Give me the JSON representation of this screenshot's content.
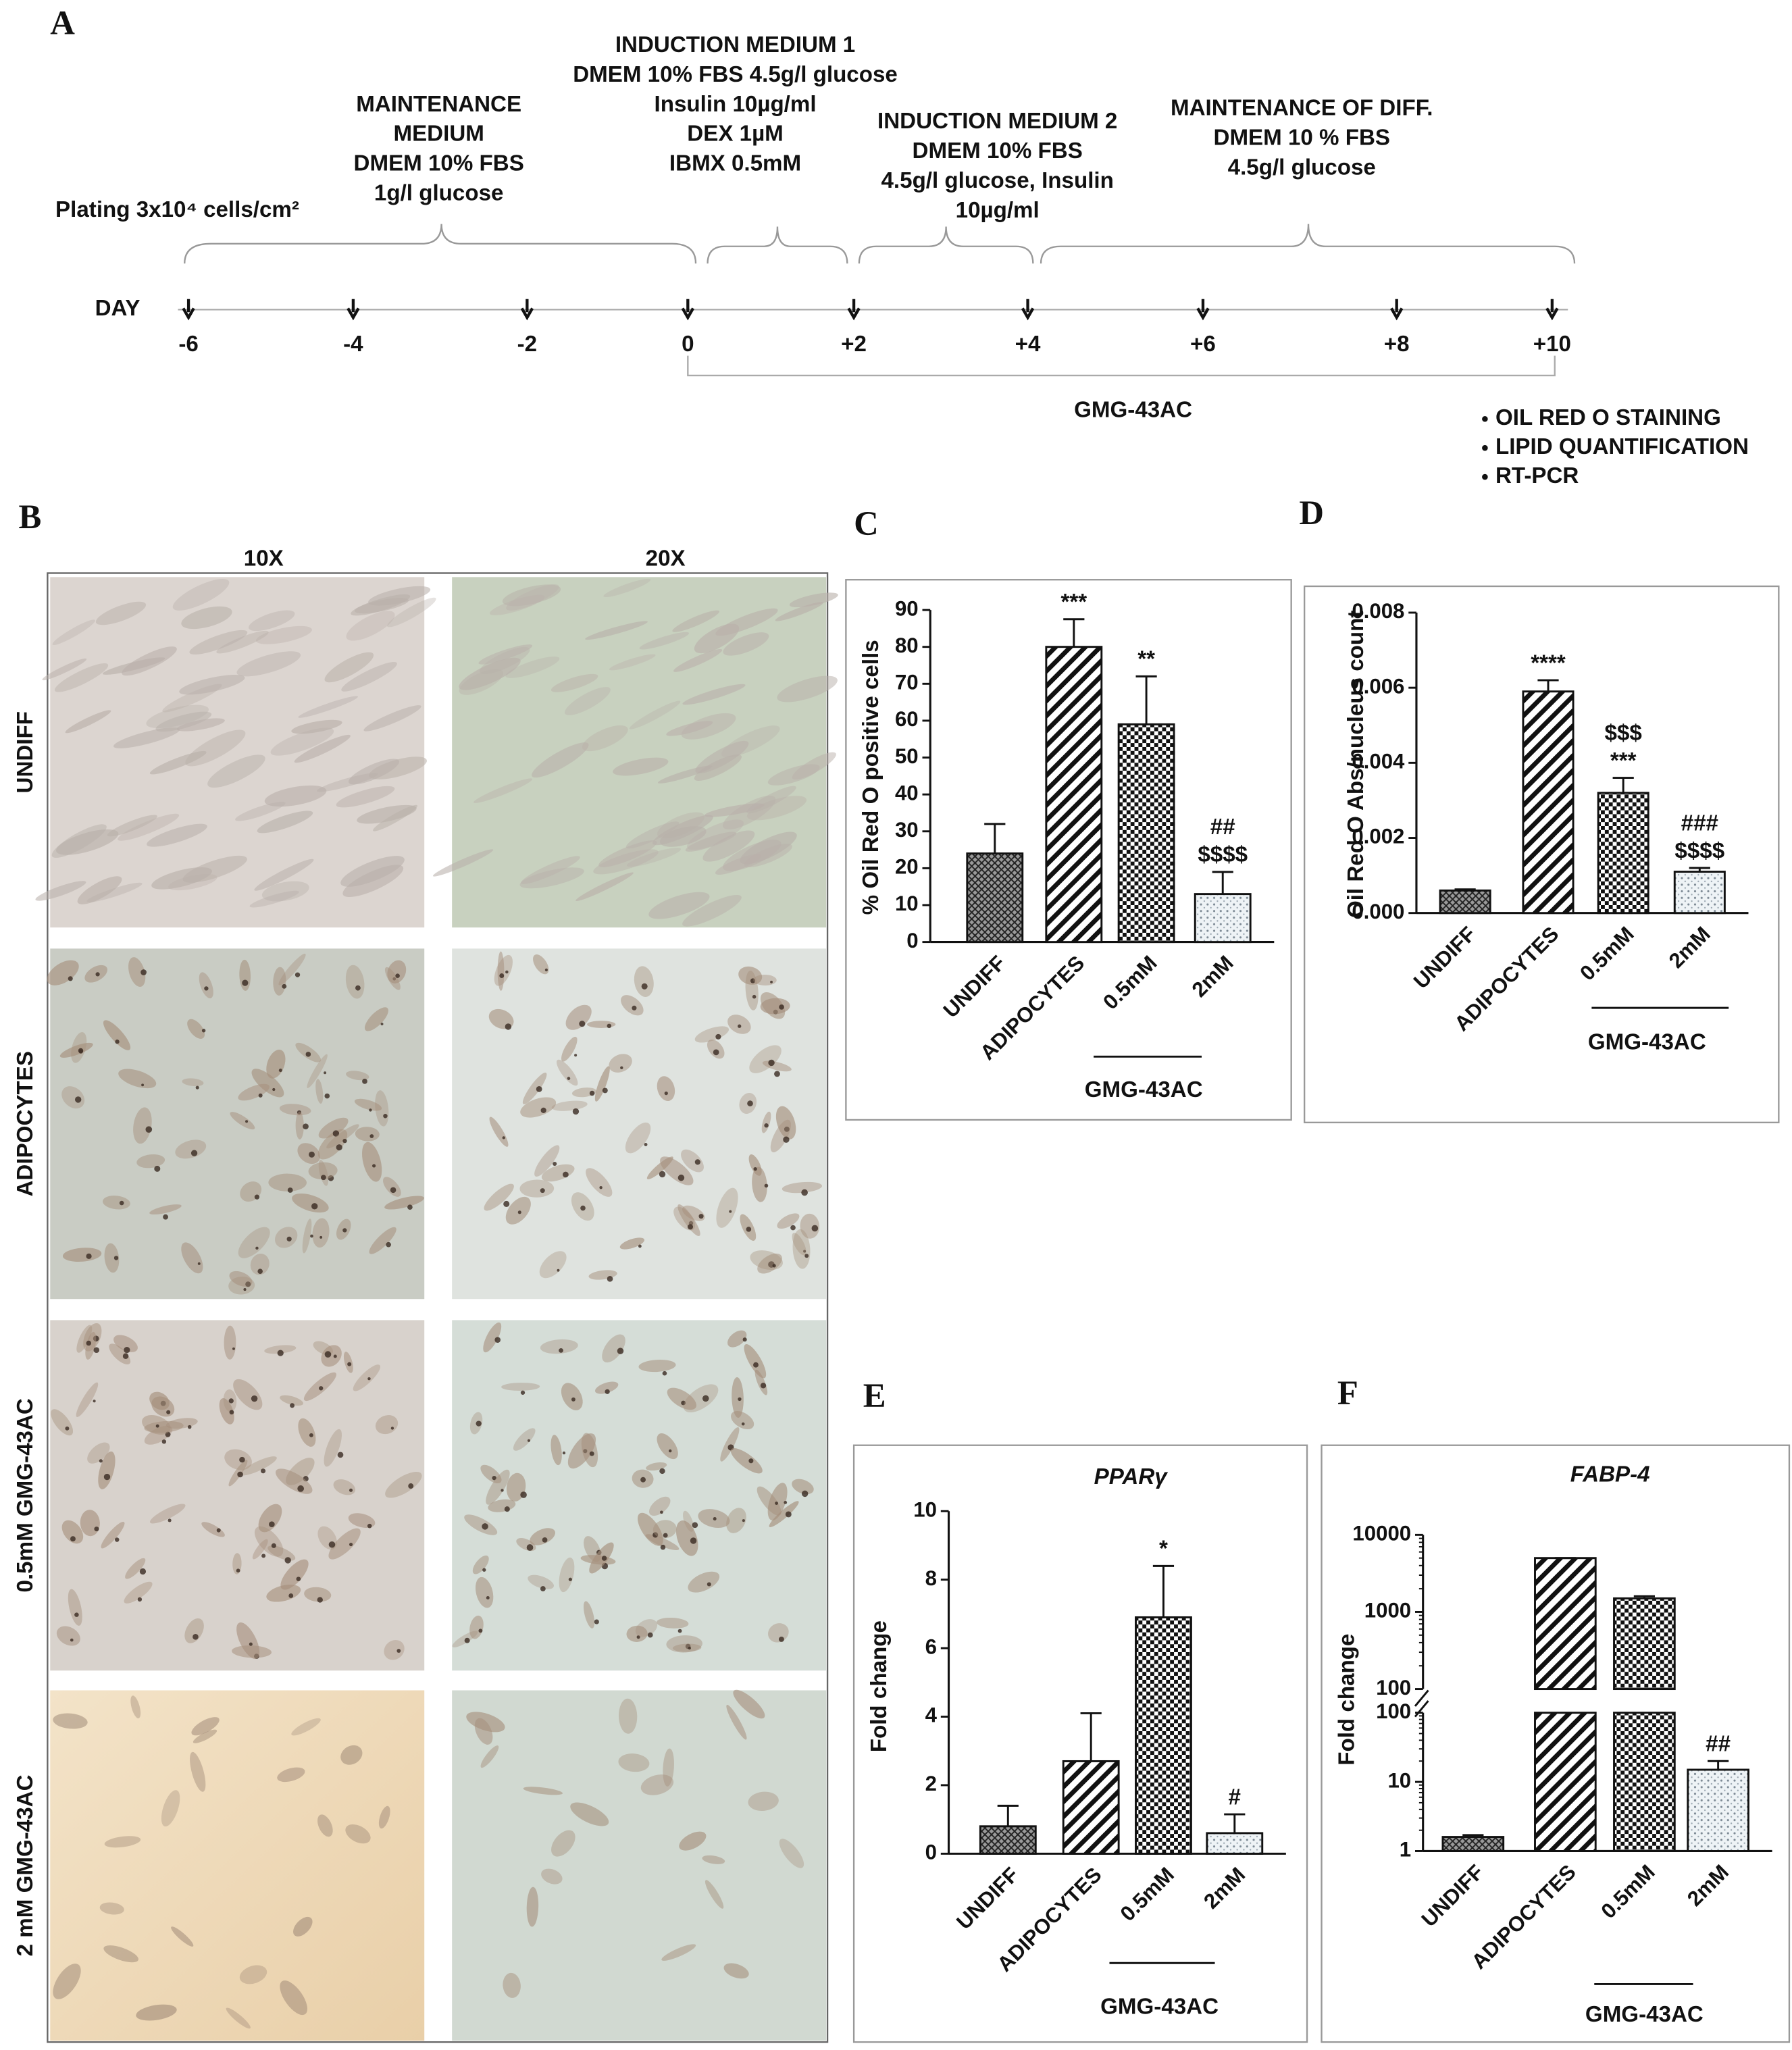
{
  "timeline": {
    "label": "A",
    "stages": [
      [
        "MAINTENANCE",
        "MEDIUM",
        "DMEM 10% FBS",
        "1g/l glucose"
      ],
      [
        "INDUCTION MEDIUM 1",
        "DMEM 10% FBS 4.5g/l glucose",
        "Insulin 10µg/ml",
        "DEX 1µM",
        "IBMX 0.5mM"
      ],
      [
        "INDUCTION MEDIUM 2",
        "DMEM 10% FBS",
        "4.5g/l glucose, Insulin",
        "10µg/ml"
      ],
      [
        "MAINTENANCE OF DIFF.",
        "DMEM 10 % FBS",
        "4.5g/l glucose"
      ]
    ],
    "plating": "Plating 3x10⁴ cells/cm²",
    "day_label": "DAY",
    "days": [
      "-6",
      "-4",
      "-2",
      "0",
      "+2",
      "+4",
      "+6",
      "+8",
      "+10"
    ],
    "treatment": "GMG-43AC",
    "readouts": [
      "OIL RED O STAINING",
      "LIPID QUANTIFICATION",
      "RT-PCR"
    ]
  },
  "micrographs": {
    "label": "B",
    "columns": [
      "10X",
      "20X"
    ],
    "rows": [
      "UNDIFF",
      "ADIPOCYTES",
      "0.5mM GMG-43AC",
      "2 mM GMG-43AC"
    ]
  },
  "chart_data": [
    {
      "type": "bar",
      "panel": "C",
      "ylabel": "% Oil Red O positive cells",
      "categories": [
        "UNDIFF",
        "ADIPOCYTES",
        "0.5mM",
        "2mM"
      ],
      "values": [
        24,
        80,
        59,
        13
      ],
      "errors": [
        8,
        7.5,
        13,
        6
      ],
      "ylim": [
        0,
        90
      ],
      "yticks": [
        0,
        10,
        20,
        30,
        40,
        50,
        60,
        70,
        80,
        90
      ],
      "patterns": [
        "crosshatch",
        "diagonal",
        "checker",
        "dots"
      ],
      "group_label": "GMG-43AC",
      "annotations": [
        {
          "category": "ADIPOCYTES",
          "text": [
            "***"
          ]
        },
        {
          "category": "0.5mM",
          "text": [
            "**"
          ]
        },
        {
          "category": "2mM",
          "text": [
            "##",
            "$$$$"
          ]
        }
      ]
    },
    {
      "type": "bar",
      "panel": "D",
      "ylabel": "Oil Red O Abs/nucleus count",
      "categories": [
        "UNDIFF",
        "ADIPOCYTES",
        "0.5mM",
        "2mM"
      ],
      "values": [
        0.0006,
        0.0059,
        0.0032,
        0.0011
      ],
      "errors": [
        3e-05,
        0.0003,
        0.0004,
        0.0001
      ],
      "ylim": [
        0,
        0.008
      ],
      "yticks": [
        {
          "value": 0,
          "label": "0.000"
        },
        {
          "value": 0.002,
          "label": "0.002"
        },
        {
          "value": 0.004,
          "label": "0.004"
        },
        {
          "value": 0.006,
          "label": "0.006"
        },
        {
          "value": 0.008,
          "label": "0.008"
        }
      ],
      "patterns": [
        "crosshatch",
        "diagonal",
        "checker",
        "dots"
      ],
      "group_label": "GMG-43AC",
      "annotations": [
        {
          "category": "ADIPOCYTES",
          "text": [
            "****"
          ]
        },
        {
          "category": "0.5mM",
          "text": [
            "$$$",
            "***"
          ]
        },
        {
          "category": "2mM",
          "text": [
            "###",
            "$$$$"
          ]
        }
      ]
    },
    {
      "type": "bar",
      "panel": "E",
      "title": "PPARγ",
      "ylabel": "Fold change",
      "categories": [
        "UNDIFF",
        "ADIPOCYTES",
        "0.5mM",
        "2mM"
      ],
      "values": [
        0.8,
        2.7,
        6.9,
        0.6
      ],
      "errors": [
        0.6,
        1.4,
        1.5,
        0.55
      ],
      "ylim": [
        0,
        10
      ],
      "yticks": [
        0,
        2,
        4,
        6,
        8,
        10
      ],
      "patterns": [
        "crosshatch",
        "diagonal",
        "checker",
        "dots"
      ],
      "group_label": "GMG-43AC",
      "annotations": [
        {
          "category": "0.5mM",
          "text": [
            "*"
          ]
        },
        {
          "category": "2mM",
          "text": [
            "#"
          ]
        }
      ]
    },
    {
      "type": "bar",
      "panel": "F",
      "title": "FABP-4",
      "ylabel": "Fold change",
      "log": true,
      "categories": [
        "UNDIFF",
        "ADIPOCYTES",
        "0.5mM",
        "2mM"
      ],
      "values": [
        1.6,
        5000,
        1500,
        15
      ],
      "errors": [
        0.1,
        0,
        100,
        5
      ],
      "ylim": [
        1,
        10000
      ],
      "segments": [
        {
          "ylim": [
            1,
            100
          ],
          "yticks": [
            1,
            10,
            100
          ]
        },
        {
          "ylim": [
            100,
            10000
          ],
          "yticks": [
            100,
            1000,
            10000
          ]
        }
      ],
      "patterns": [
        "crosshatch",
        "diagonal",
        "checker",
        "dots"
      ],
      "group_label": "GMG-43AC",
      "annotations": [
        {
          "category": "2mM",
          "text": [
            "##"
          ]
        }
      ]
    }
  ]
}
